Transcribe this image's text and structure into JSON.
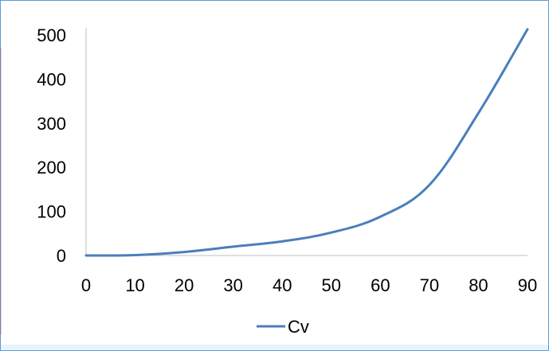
{
  "chart_data": {
    "type": "line",
    "title": "",
    "xlabel": "",
    "ylabel": "",
    "xlim": [
      0,
      90
    ],
    "ylim": [
      0,
      500
    ],
    "x_ticks": [
      "0",
      "10",
      "20",
      "30",
      "40",
      "50",
      "60",
      "70",
      "80",
      "90"
    ],
    "y_ticks": [
      "0",
      "100",
      "200",
      "300",
      "400",
      "500"
    ],
    "grid": false,
    "legend_position": "bottom",
    "series": [
      {
        "name": "Cv",
        "color": "#4a7ebb",
        "x": [
          0,
          10,
          20,
          30,
          40,
          50,
          60,
          70,
          80,
          90
        ],
        "values": [
          0,
          1,
          8,
          20,
          32,
          52,
          88,
          160,
          323,
          513
        ]
      }
    ]
  }
}
